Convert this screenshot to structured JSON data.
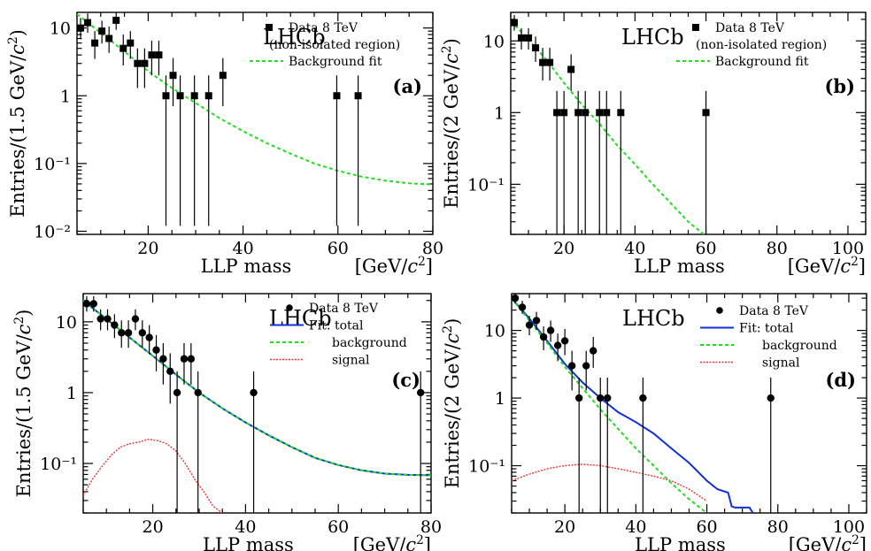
{
  "colors": {
    "data": "#000000",
    "total_fit": "#1030d8",
    "background_fit": "#22dd22",
    "signal": "#ee3333"
  },
  "chart_data": [
    {
      "panel": "(a)",
      "type": "scatter",
      "experiment": "LHCb",
      "ylog": true,
      "xlim": [
        5,
        80
      ],
      "ylim": [
        0.009,
        17
      ],
      "xlabel": "LLP mass",
      "xunit": "[GeV/c²]",
      "ylabel": "Entries/(1.5 GeV/c²)",
      "xticks": [
        20,
        40,
        60,
        80
      ],
      "yticks": [
        {
          "v": 0.01,
          "label": "10⁻²"
        },
        {
          "v": 0.1,
          "label": "10⁻¹"
        },
        {
          "v": 1,
          "label": "1"
        },
        {
          "v": 10,
          "label": "10"
        }
      ],
      "legend": [
        {
          "kind": "square",
          "label": "Data 8 TeV"
        },
        {
          "kind": "text",
          "label": "(non-isolated region)"
        },
        {
          "kind": "bkg",
          "label": "Background fit"
        }
      ],
      "data": {
        "x": [
          5.75,
          7.25,
          8.75,
          10.25,
          11.75,
          13.25,
          14.75,
          16.25,
          17.75,
          19.25,
          20.75,
          22.25,
          23.75,
          25.25,
          26.75,
          29.75,
          32.75,
          35.75,
          59.75,
          64.25
        ],
        "y": [
          10,
          12,
          6,
          9,
          7,
          13,
          5,
          6,
          3,
          3,
          4,
          4,
          1,
          2,
          1,
          1,
          1,
          2,
          1,
          1
        ],
        "marker": "square"
      },
      "background": {
        "x": [
          5,
          10,
          15,
          20,
          25,
          30,
          35,
          40,
          45,
          50,
          55,
          60,
          65,
          70,
          75,
          80
        ],
        "y": [
          16,
          8.5,
          4.5,
          2.3,
          1.3,
          0.78,
          0.47,
          0.3,
          0.2,
          0.14,
          0.1,
          0.078,
          0.064,
          0.056,
          0.051,
          0.049
        ]
      }
    },
    {
      "panel": "(b)",
      "type": "scatter",
      "experiment": "LHCb",
      "ylog": true,
      "xlim": [
        5,
        105
      ],
      "ylim": [
        0.02,
        25
      ],
      "xlabel": "LLP mass",
      "xunit": "[GeV/c²]",
      "ylabel": "Entries/(2 GeV/c²)",
      "xticks": [
        20,
        40,
        60,
        80,
        100
      ],
      "yticks": [
        {
          "v": 0.1,
          "label": "10⁻¹"
        },
        {
          "v": 1,
          "label": "1"
        },
        {
          "v": 10,
          "label": "10"
        }
      ],
      "legend": [
        {
          "kind": "square",
          "label": "Data 8 TeV"
        },
        {
          "kind": "text",
          "label": "(non-isolated region)"
        },
        {
          "kind": "bkg",
          "label": "Background fit"
        }
      ],
      "data": {
        "x": [
          6,
          8,
          10,
          12,
          14,
          16,
          18,
          20,
          22,
          24,
          26,
          30,
          32,
          36,
          60
        ],
        "y": [
          18,
          11,
          11,
          8,
          5,
          5,
          1,
          1,
          4,
          1,
          1,
          1,
          1,
          1,
          1
        ],
        "marker": "square"
      },
      "background": {
        "x": [
          5,
          10,
          15,
          20,
          25,
          30,
          35,
          40,
          45,
          50,
          55,
          60
        ],
        "y": [
          19,
          10.5,
          5.5,
          2.6,
          1.3,
          0.7,
          0.35,
          0.19,
          0.1,
          0.055,
          0.03,
          0.019
        ]
      }
    },
    {
      "panel": "(c)",
      "type": "scatter",
      "experiment": "LHCb",
      "ylog": true,
      "xlim": [
        5,
        80
      ],
      "ylim": [
        0.02,
        25
      ],
      "xlabel": "LLP mass",
      "xunit": "[GeV/c²]",
      "ylabel": "Entries/(1.5 GeV/c²)",
      "xticks": [
        20,
        40,
        60,
        80
      ],
      "yticks": [
        {
          "v": 0.1,
          "label": "10⁻¹"
        },
        {
          "v": 1,
          "label": "1"
        },
        {
          "v": 10,
          "label": "10"
        }
      ],
      "legend": [
        {
          "kind": "dot",
          "label": "Data 8 TeV"
        },
        {
          "kind": "total",
          "label": "Fit: total"
        },
        {
          "kind": "bkg",
          "label": "background"
        },
        {
          "kind": "sig",
          "label": "signal"
        }
      ],
      "data": {
        "x": [
          5.75,
          7.25,
          8.75,
          10.25,
          11.75,
          13.25,
          14.75,
          16.25,
          17.75,
          19.25,
          20.75,
          22.25,
          23.75,
          25.25,
          26.75,
          28.25,
          29.75,
          41.75,
          77.75
        ],
        "y": [
          18,
          18,
          11,
          11,
          9,
          7,
          7,
          11,
          7,
          6,
          4,
          3,
          2,
          1,
          3,
          3,
          1,
          1,
          1
        ],
        "marker": "dot"
      },
      "total": {
        "x": [
          5,
          10,
          15,
          20,
          25,
          30,
          35,
          40,
          45,
          50,
          55,
          60,
          65,
          70,
          75,
          80
        ],
        "y": [
          20,
          11,
          6,
          3.3,
          1.8,
          1.0,
          0.6,
          0.38,
          0.25,
          0.17,
          0.12,
          0.095,
          0.08,
          0.072,
          0.069,
          0.068
        ]
      },
      "background": {
        "x": [
          5,
          10,
          15,
          20,
          25,
          30,
          35,
          40,
          45,
          50,
          55,
          60,
          65,
          70,
          75,
          80
        ],
        "y": [
          20,
          11,
          6,
          3.3,
          1.8,
          1.0,
          0.6,
          0.38,
          0.25,
          0.17,
          0.12,
          0.095,
          0.08,
          0.072,
          0.069,
          0.068
        ]
      },
      "signal": {
        "x": [
          5,
          7,
          9,
          11,
          13,
          15,
          17,
          19,
          21,
          23,
          25,
          27,
          29,
          31,
          33,
          35
        ],
        "y": [
          0.035,
          0.06,
          0.09,
          0.13,
          0.17,
          0.19,
          0.2,
          0.22,
          0.21,
          0.19,
          0.15,
          0.1,
          0.06,
          0.04,
          0.025,
          0.02
        ]
      }
    },
    {
      "panel": "(d)",
      "type": "scatter",
      "experiment": "LHCb",
      "ylog": true,
      "xlim": [
        5,
        105
      ],
      "ylim": [
        0.02,
        35
      ],
      "xlabel": "LLP mass",
      "xunit": "[GeV/c²]",
      "ylabel": "Entries/(2 GeV/c²)",
      "xticks": [
        20,
        40,
        60,
        80,
        100
      ],
      "yticks": [
        {
          "v": 0.1,
          "label": "10⁻¹"
        },
        {
          "v": 1,
          "label": "1"
        },
        {
          "v": 10,
          "label": "10"
        }
      ],
      "legend": [
        {
          "kind": "dot",
          "label": "Data 8 TeV"
        },
        {
          "kind": "total",
          "label": "Fit: total"
        },
        {
          "kind": "bkg",
          "label": "background"
        },
        {
          "kind": "sig",
          "label": "signal"
        }
      ],
      "data": {
        "x": [
          6,
          8,
          10,
          12,
          14,
          16,
          18,
          20,
          22,
          24,
          26,
          28,
          30,
          32,
          42,
          78
        ],
        "y": [
          30,
          22,
          12,
          14,
          8,
          10,
          6,
          7,
          3,
          1,
          3,
          5,
          1,
          1,
          1,
          1
        ],
        "marker": "dot"
      },
      "total": {
        "x": [
          5,
          10,
          15,
          20,
          25,
          30,
          35,
          40,
          45,
          50,
          55,
          60,
          63,
          66,
          67,
          68,
          72,
          73
        ],
        "y": [
          30,
          15,
          7,
          3.2,
          1.7,
          1.0,
          0.62,
          0.44,
          0.3,
          0.18,
          0.11,
          0.06,
          0.045,
          0.04,
          0.025,
          0.024,
          0.024,
          0.02
        ]
      },
      "background": {
        "x": [
          5,
          10,
          15,
          20,
          25,
          30,
          35,
          40,
          45,
          50,
          55,
          60
        ],
        "y": [
          30,
          14,
          6.5,
          2.9,
          1.4,
          0.68,
          0.35,
          0.18,
          0.1,
          0.055,
          0.032,
          0.02
        ]
      },
      "signal": {
        "x": [
          5,
          10,
          15,
          20,
          25,
          30,
          35,
          40,
          45,
          50,
          55,
          60
        ],
        "y": [
          0.06,
          0.075,
          0.09,
          0.1,
          0.105,
          0.1,
          0.09,
          0.08,
          0.07,
          0.06,
          0.045,
          0.03
        ]
      }
    }
  ]
}
